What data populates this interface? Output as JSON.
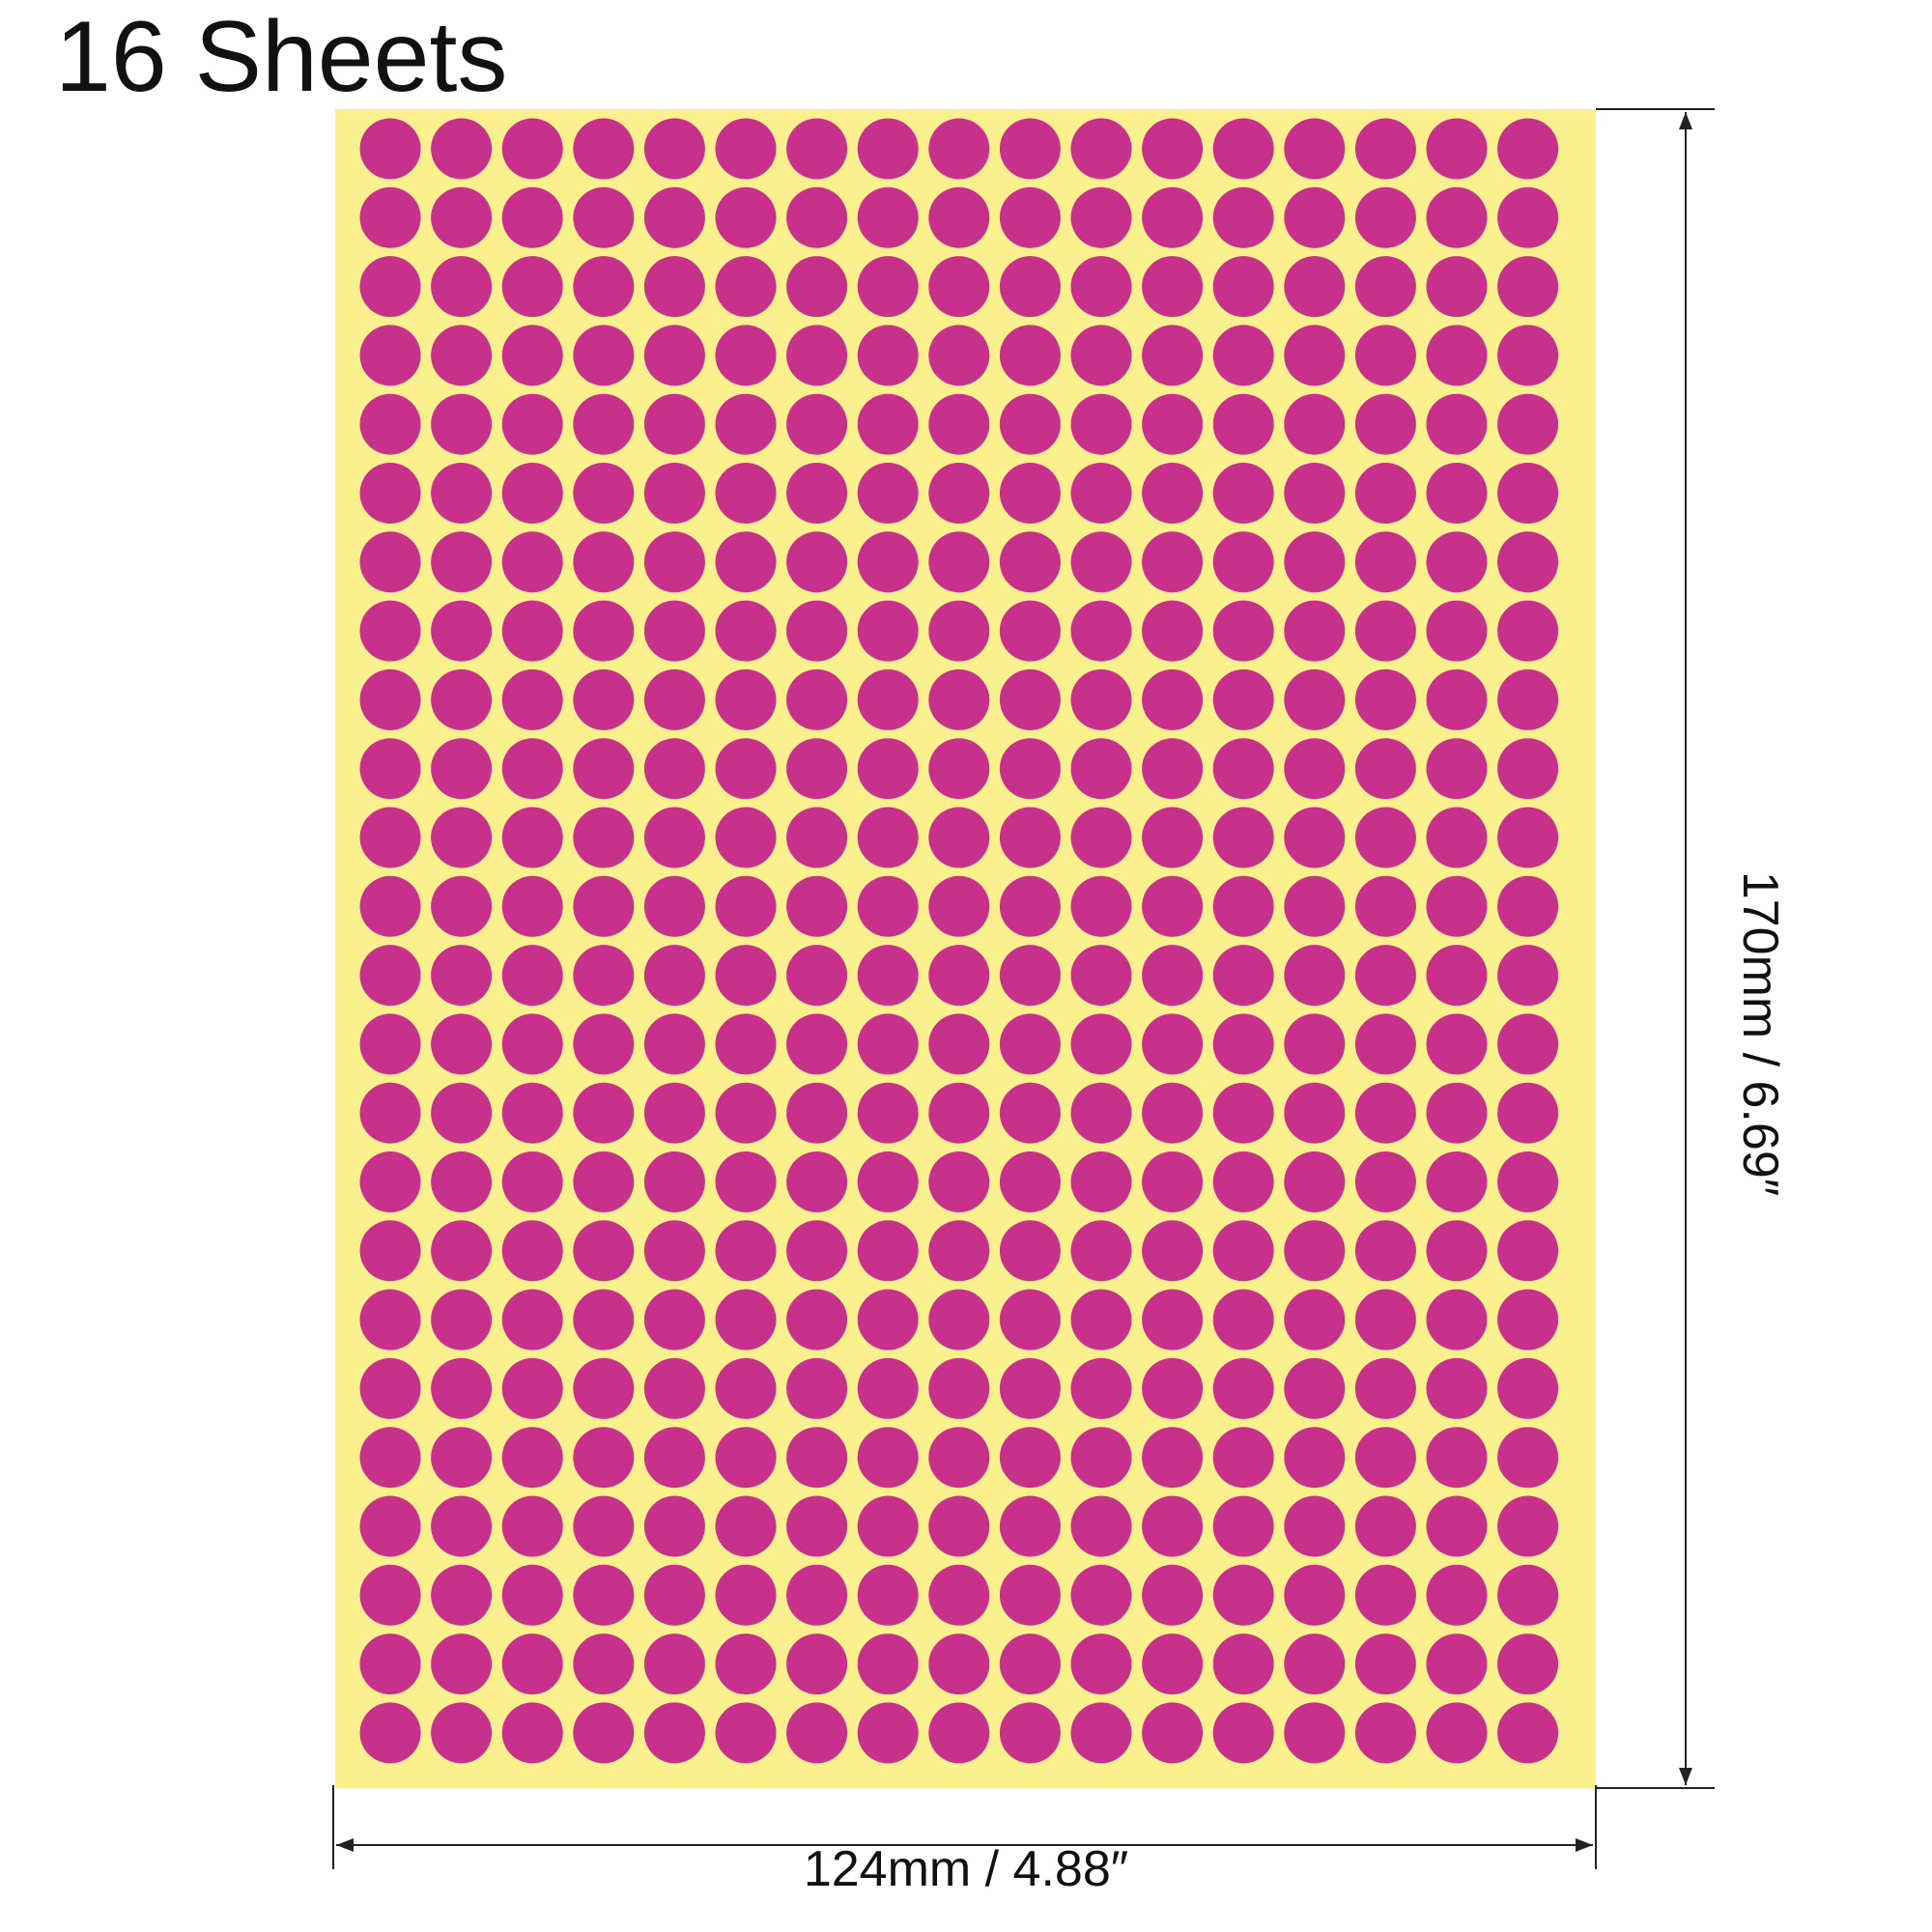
{
  "title": "16 Sheets",
  "sheet": {
    "rows": 24,
    "columns": 17,
    "backing_color": "#fbf08e",
    "dot_color": "#c8318b"
  },
  "dimensions": {
    "width_label": "124mm / 4.88″",
    "height_label": "170mm / 6.69″"
  }
}
